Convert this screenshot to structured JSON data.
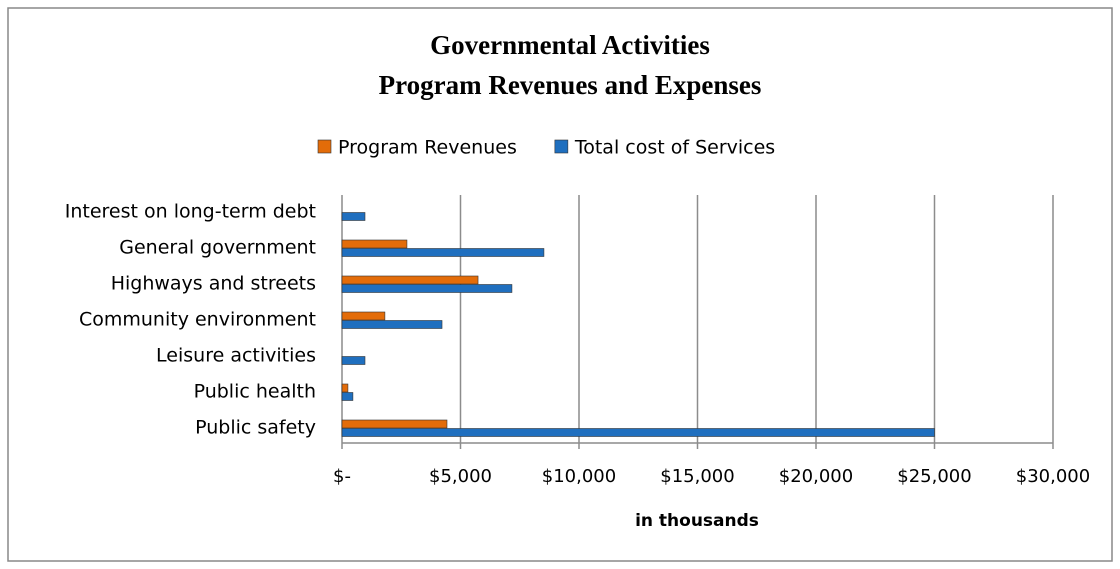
{
  "chart_data": {
    "type": "hbar",
    "title": "Governmental Activities",
    "subtitle": "Program Revenues and Expenses",
    "x_label": "in thousands",
    "categories": [
      "Interest on long-term debt",
      "General government",
      "Highways and streets",
      "Community environment",
      "Leisure activities",
      "Public health",
      "Public safety"
    ],
    "series": [
      {
        "name": "Program Revenues",
        "color": "#e36c09",
        "values": [
          0,
          2740,
          5740,
          1810,
          0,
          250,
          4430
        ]
      },
      {
        "name": "Total cost of Services",
        "color": "#1f6fbf",
        "values": [
          970,
          8520,
          7170,
          4220,
          970,
          460,
          25000
        ]
      }
    ],
    "xlim": [
      0,
      30000
    ],
    "xticks": [
      {
        "value": 0,
        "label": "$-"
      },
      {
        "value": 5000,
        "label": "$5,000"
      },
      {
        "value": 10000,
        "label": "$10,000"
      },
      {
        "value": 15000,
        "label": "$15,000"
      },
      {
        "value": 20000,
        "label": "$20,000"
      },
      {
        "value": 25000,
        "label": "$25,000"
      },
      {
        "value": 30000,
        "label": "$30,000"
      }
    ],
    "grid": true,
    "legend": "top"
  }
}
